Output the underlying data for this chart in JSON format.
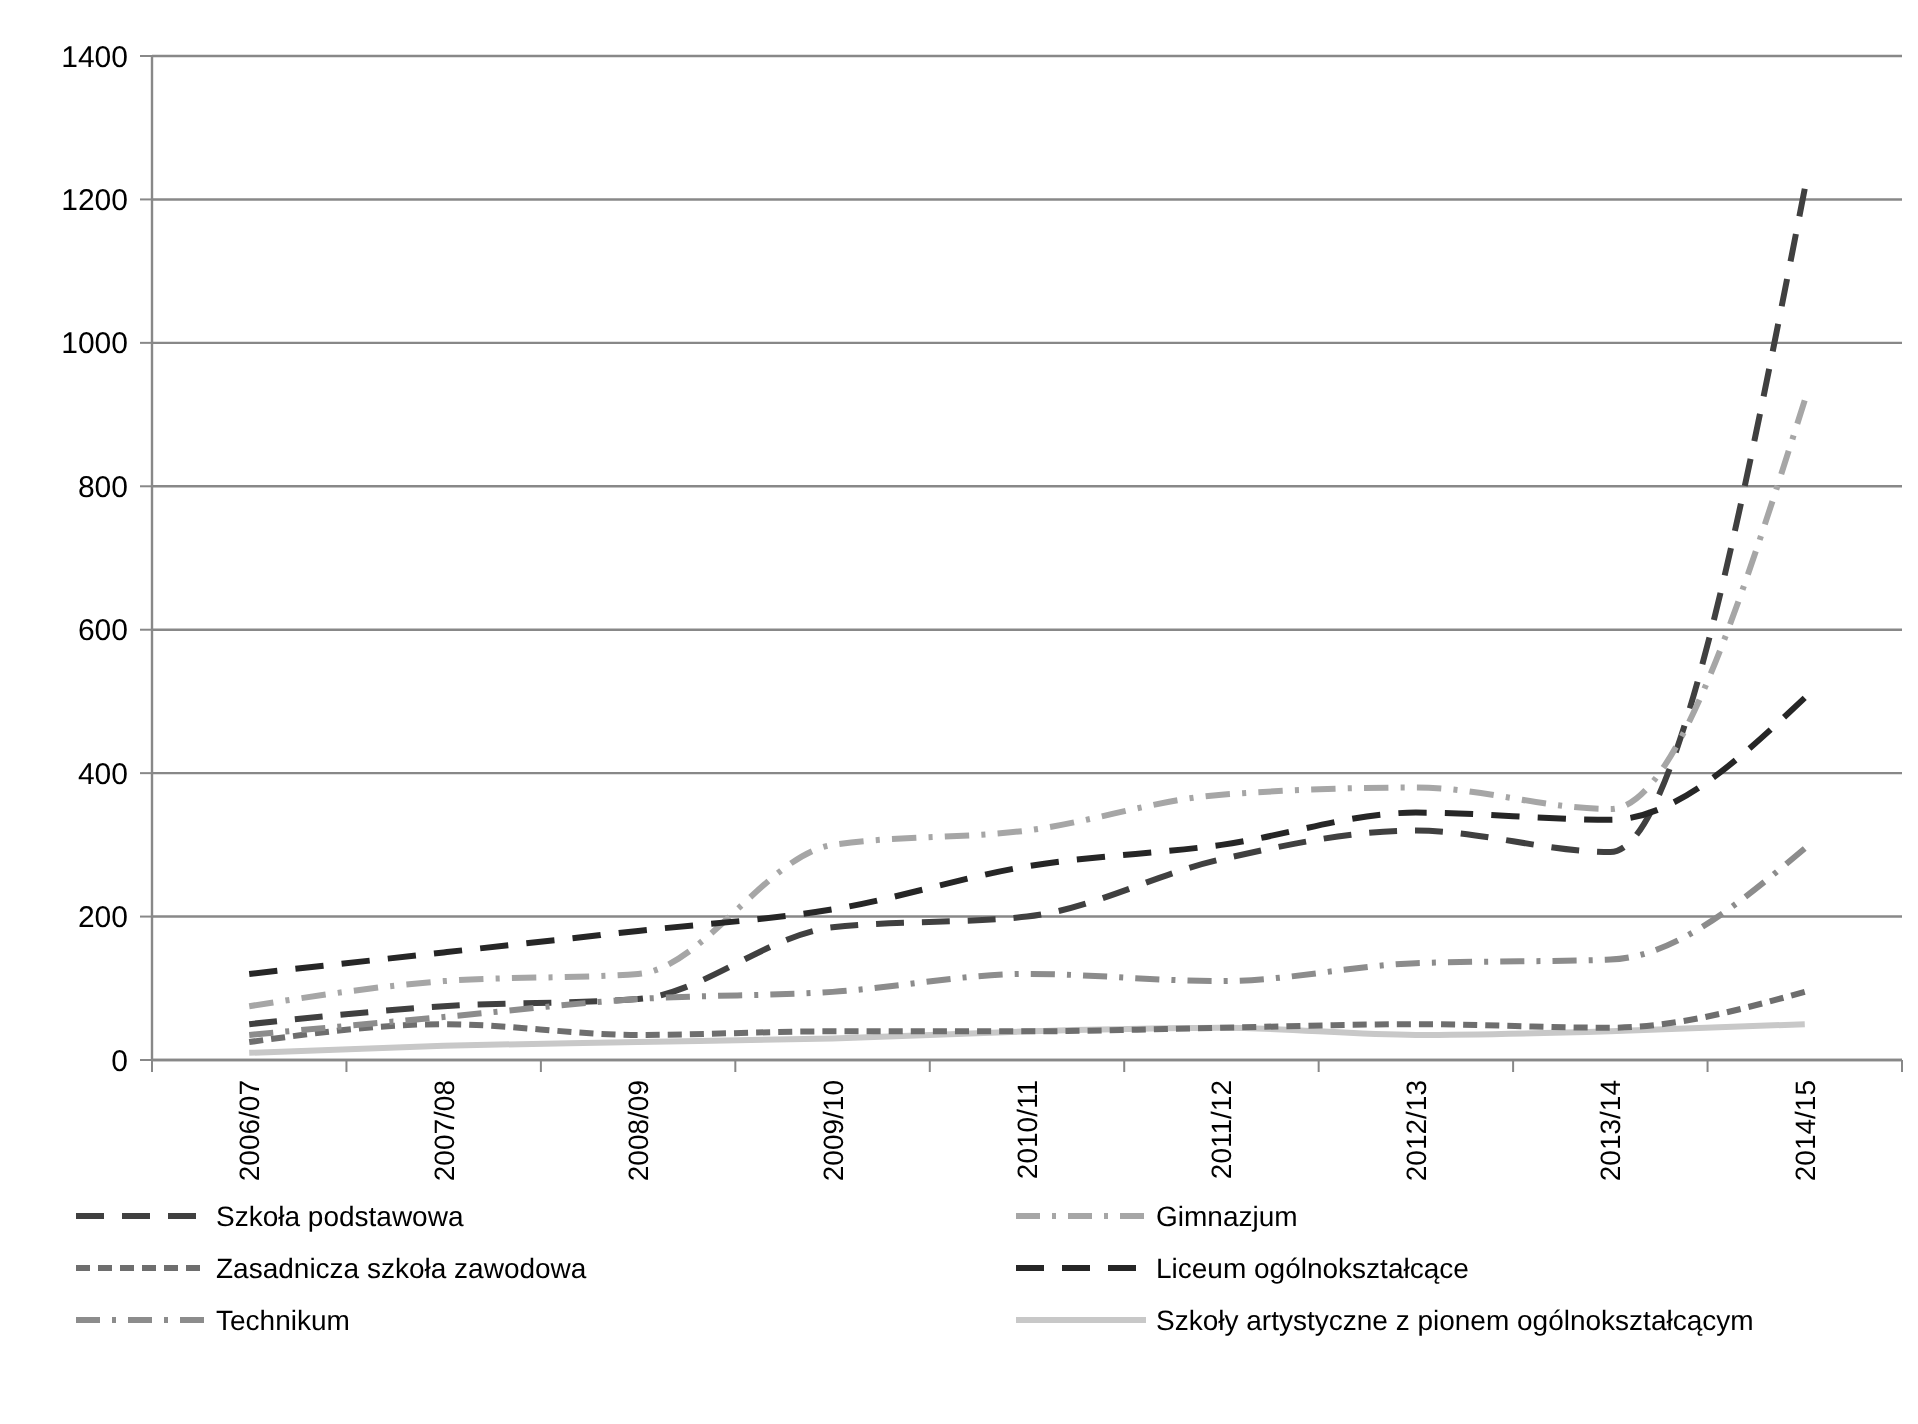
{
  "chart_data": {
    "type": "line",
    "categories": [
      "2006/07",
      "2007/08",
      "2008/09",
      "2009/10",
      "2010/11",
      "2011/12",
      "2012/13",
      "2013/14",
      "2014/15"
    ],
    "ylim": [
      0,
      1400
    ],
    "yticks": [
      0,
      200,
      400,
      600,
      800,
      1000,
      1200,
      1400
    ],
    "grid": "y",
    "legend": "bottom",
    "marker": "none",
    "series": [
      {
        "name": "Szkoła podstawowa",
        "color": "#404040",
        "line_style": "dashed",
        "values": [
          50,
          75,
          85,
          185,
          200,
          280,
          320,
          290,
          1215
        ]
      },
      {
        "name": "Gimnazjum",
        "color": "#a6a6a6",
        "line_style": "dashed",
        "values": [
          75,
          110,
          120,
          300,
          320,
          370,
          380,
          350,
          920
        ]
      },
      {
        "name": "Zasadnicza szkoła zawodowa",
        "color": "#6e6e6e",
        "line_style": "dotted",
        "values": [
          25,
          50,
          35,
          40,
          40,
          45,
          50,
          45,
          95
        ]
      },
      {
        "name": "Liceum ogólnokształcące",
        "color": "#262626",
        "line_style": "dashed",
        "values": [
          120,
          150,
          180,
          210,
          270,
          300,
          345,
          335,
          505
        ]
      },
      {
        "name": "Technikum",
        "color": "#8c8c8c",
        "line_style": "dashed",
        "values": [
          35,
          60,
          85,
          95,
          120,
          110,
          135,
          140,
          295
        ]
      },
      {
        "name": "Szkoły artystyczne z pionem ogólnokształcącym",
        "color": "#c8c8c8",
        "line_style": "solid",
        "values": [
          10,
          20,
          25,
          30,
          40,
          45,
          35,
          40,
          50
        ]
      }
    ]
  }
}
